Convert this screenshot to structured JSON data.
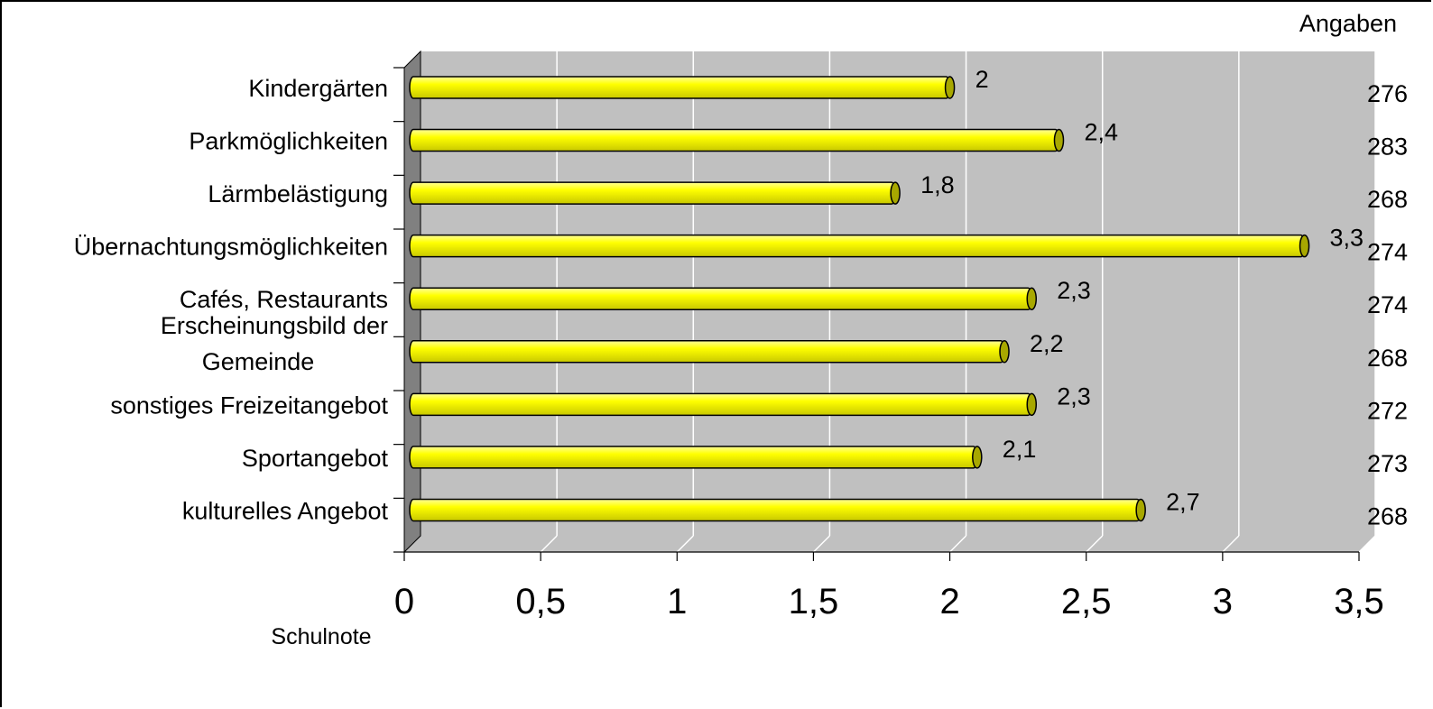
{
  "chart_data": {
    "type": "bar",
    "orientation": "horizontal",
    "categories": [
      "Kindergärten",
      "Parkmöglichkeiten",
      "Lärmbelästigung",
      "Übernachtungsmöglichkeiten",
      "Cafés, Restaurants",
      "Erscheinungsbild der Gemeinde",
      "sonstiges Freizeitangebot",
      "Sportangebot",
      "kulturelles Angebot"
    ],
    "category_lines": [
      [
        "Kindergärten"
      ],
      [
        "Parkmöglichkeiten"
      ],
      [
        "Lärmbelästigung"
      ],
      [
        "Übernachtungsmöglichkeiten"
      ],
      [
        "Cafés, Restaurants"
      ],
      [
        "Erscheinungsbild der",
        "Gemeinde"
      ],
      [
        "sonstiges Freizeitangebot"
      ],
      [
        "Sportangebot"
      ],
      [
        "kulturelles Angebot"
      ]
    ],
    "values": [
      2.0,
      2.4,
      1.8,
      3.3,
      2.3,
      2.2,
      2.3,
      2.1,
      2.7
    ],
    "value_labels": [
      "2",
      "2,4",
      "1,8",
      "3,3",
      "2,3",
      "2,2",
      "2,3",
      "2,1",
      "2,7"
    ],
    "right_header": "Angaben",
    "right_values": [
      "276",
      "283",
      "268",
      "274",
      "274",
      "268",
      "272",
      "273",
      "268"
    ],
    "xlabel": "Schulnote",
    "xlim": [
      0,
      3.5
    ],
    "xticks": [
      0,
      0.5,
      1,
      1.5,
      2,
      2.5,
      3,
      3.5
    ],
    "xtick_labels": [
      "0",
      "0,5",
      "1",
      "1,5",
      "2",
      "2,5",
      "3",
      "3,5"
    ],
    "grid": true,
    "colors": {
      "bar": "#ffff00",
      "bar_shadow": "#a8a800",
      "plot_bg": "#c0c0c0",
      "side_wall": "#808080",
      "gridline": "#ffffff"
    }
  }
}
